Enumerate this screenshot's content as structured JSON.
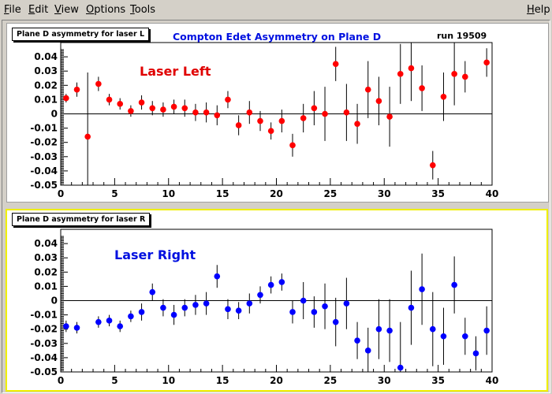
{
  "menu": {
    "file": "File",
    "edit": "Edit",
    "view": "View",
    "options": "Options",
    "tools": "Tools",
    "help": "Help"
  },
  "canvas": {
    "main_title": "Compton  Edet  Asymmetry on Plane  D",
    "run_label": "run 19509"
  },
  "colors": {
    "left_marker": "#ff0000",
    "right_marker": "#0000ff",
    "pad_highlight": "#f0f000"
  },
  "chart_data": [
    {
      "type": "scatter",
      "title": "Plane D asymmetry for laser L",
      "annotation": "Laser  Left",
      "xlim": [
        0,
        40
      ],
      "ylim": [
        -0.05,
        0.05
      ],
      "x_ticks": [
        "0",
        "5",
        "10",
        "15",
        "20",
        "25",
        "30",
        "35",
        "40"
      ],
      "y_ticks": [
        "0.04",
        "0.03",
        "0.02",
        "0.01",
        "0",
        "-0.01",
        "-0.02",
        "-0.03",
        "-0.04",
        "-0.05"
      ],
      "x": [
        0.5,
        1.5,
        2.5,
        3.5,
        4.5,
        5.5,
        6.5,
        7.5,
        8.5,
        9.5,
        10.5,
        11.5,
        12.5,
        13.5,
        14.5,
        15.5,
        16.5,
        17.5,
        18.5,
        19.5,
        20.5,
        21.5,
        22.5,
        23.5,
        24.5,
        25.5,
        26.5,
        27.5,
        28.5,
        29.5,
        30.5,
        31.5,
        32.5,
        33.5,
        34.5,
        35.5,
        36.5,
        37.5,
        39.5
      ],
      "y": [
        0.011,
        0.017,
        -0.016,
        0.021,
        0.01,
        0.007,
        0.002,
        0.008,
        0.004,
        0.003,
        0.005,
        0.004,
        0.001,
        0.001,
        -0.001,
        0.01,
        -0.008,
        0.001,
        -0.005,
        -0.012,
        -0.005,
        -0.022,
        -0.003,
        0.004,
        0.0,
        0.035,
        0.001,
        -0.007,
        0.017,
        0.009,
        -0.002,
        0.028,
        0.032,
        0.018,
        -0.036,
        0.012,
        0.028,
        0.026,
        0.036
      ],
      "err": [
        0.003,
        0.005,
        0.045,
        0.005,
        0.004,
        0.004,
        0.004,
        0.005,
        0.005,
        0.005,
        0.005,
        0.006,
        0.006,
        0.007,
        0.007,
        0.006,
        0.007,
        0.008,
        0.007,
        0.006,
        0.008,
        0.008,
        0.01,
        0.012,
        0.019,
        0.012,
        0.02,
        0.014,
        0.02,
        0.017,
        0.021,
        0.021,
        0.023,
        0.016,
        0.01,
        0.017,
        0.022,
        0.011,
        0.01
      ],
      "marker_color": "#ff0000"
    },
    {
      "type": "scatter",
      "title": "Plane D asymmetry for laser R",
      "annotation": "Laser Right",
      "xlim": [
        0,
        40
      ],
      "ylim": [
        -0.05,
        0.05
      ],
      "x_ticks": [
        "0",
        "5",
        "10",
        "15",
        "20",
        "25",
        "30",
        "35",
        "40"
      ],
      "y_ticks": [
        "0.04",
        "0.03",
        "0.02",
        "0.01",
        "0",
        "-0.01",
        "-0.02",
        "-0.03",
        "-0.04",
        "-0.05"
      ],
      "x": [
        0.5,
        1.5,
        3.5,
        4.5,
        5.5,
        6.5,
        7.5,
        8.5,
        9.5,
        10.5,
        11.5,
        12.5,
        13.5,
        14.5,
        15.5,
        16.5,
        17.5,
        18.5,
        19.5,
        20.5,
        21.5,
        22.5,
        23.5,
        24.5,
        25.5,
        26.5,
        27.5,
        28.5,
        29.5,
        30.5,
        31.5,
        32.5,
        33.5,
        34.5,
        35.5,
        36.5,
        37.5,
        38.5,
        39.5
      ],
      "y": [
        -0.018,
        -0.019,
        -0.015,
        -0.014,
        -0.018,
        -0.011,
        -0.008,
        0.006,
        -0.005,
        -0.01,
        -0.005,
        -0.003,
        -0.002,
        0.017,
        -0.006,
        -0.007,
        -0.002,
        0.004,
        0.011,
        0.013,
        -0.008,
        0.0,
        -0.008,
        -0.004,
        -0.015,
        -0.002,
        -0.028,
        -0.035,
        -0.02,
        -0.021,
        -0.047,
        -0.005,
        0.008,
        -0.02,
        -0.025,
        0.011,
        -0.025,
        -0.037,
        -0.021
      ],
      "err": [
        0.004,
        0.004,
        0.004,
        0.004,
        0.004,
        0.004,
        0.006,
        0.006,
        0.006,
        0.007,
        0.006,
        0.007,
        0.008,
        0.008,
        0.007,
        0.006,
        0.007,
        0.006,
        0.006,
        0.006,
        0.008,
        0.013,
        0.011,
        0.016,
        0.017,
        0.018,
        0.013,
        0.016,
        0.021,
        0.022,
        0.032,
        0.026,
        0.025,
        0.026,
        0.02,
        0.02,
        0.013,
        0.012,
        0.017
      ],
      "marker_color": "#0000ff"
    }
  ]
}
